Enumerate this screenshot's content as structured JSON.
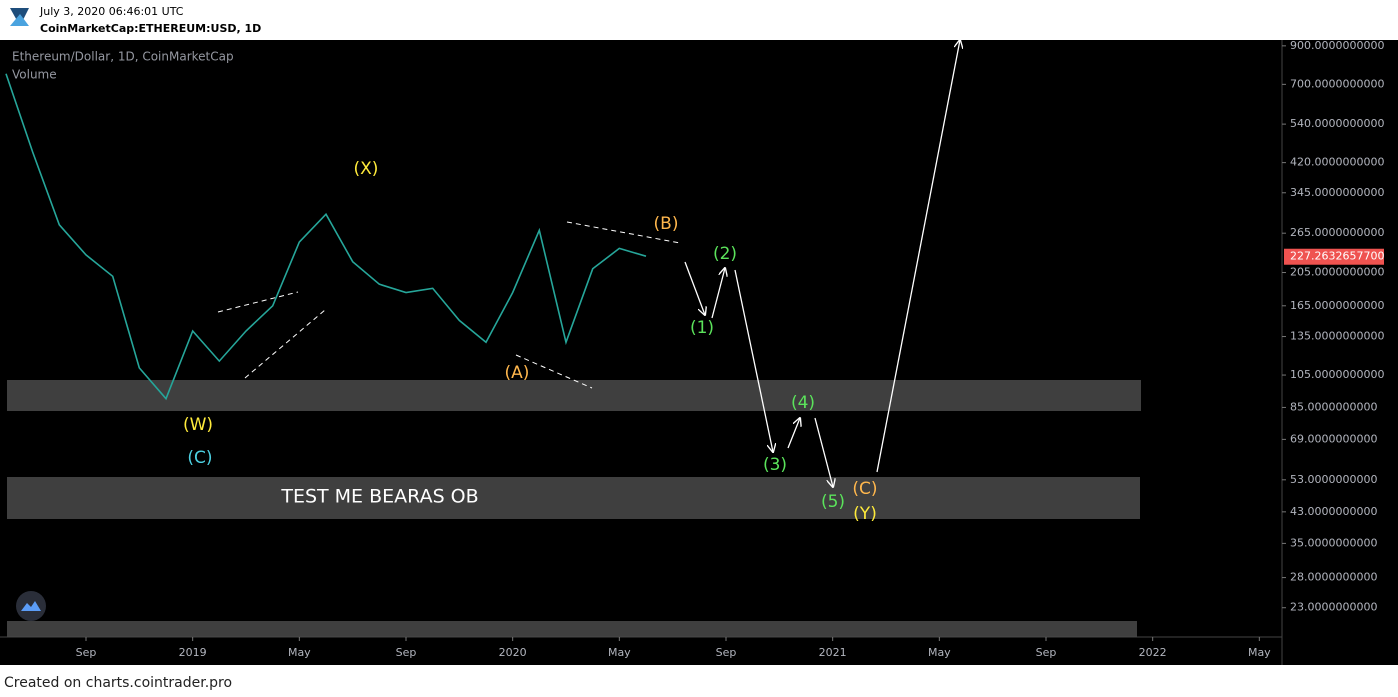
{
  "header": {
    "timestamp": "July 3, 2020 06:46:01 UTC",
    "symbol": "CoinMarketCap:ETHEREUM:USD, 1D"
  },
  "footer": "Created on charts.cointrader.pro",
  "chart_data": {
    "type": "line",
    "legend_title": "Ethereum/Dollar, 1D, CoinMarketCap",
    "volume_label": "Volume",
    "log_scale": true,
    "x": [
      "2018-06",
      "2018-07",
      "2018-08",
      "2018-09",
      "2018-10",
      "2018-11",
      "2018-12",
      "2019-01",
      "2019-02",
      "2019-03",
      "2019-04",
      "2019-05",
      "2019-06",
      "2019-07",
      "2019-08",
      "2019-09",
      "2019-10",
      "2019-11",
      "2019-12",
      "2020-01",
      "2020-02",
      "2020-03",
      "2020-04",
      "2020-05",
      "2020-06"
    ],
    "series": [
      {
        "name": "Ethereum/Dollar",
        "color": "#26a69a",
        "values": [
          750,
          450,
          280,
          230,
          200,
          110,
          90,
          140,
          115,
          140,
          165,
          250,
          300,
          220,
          190,
          180,
          185,
          150,
          130,
          180,
          270,
          130,
          210,
          240,
          228
        ]
      }
    ],
    "xlim": [
      "2018-06",
      "2022-06"
    ],
    "xticks": [
      {
        "value": "2018-09",
        "label": "Sep"
      },
      {
        "value": "2019-01",
        "label": "2019"
      },
      {
        "value": "2019-05",
        "label": "May"
      },
      {
        "value": "2019-09",
        "label": "Sep"
      },
      {
        "value": "2020-01",
        "label": "2020"
      },
      {
        "value": "2020-05",
        "label": "May"
      },
      {
        "value": "2020-09",
        "label": "Sep"
      },
      {
        "value": "2021-01",
        "label": "2021"
      },
      {
        "value": "2021-05",
        "label": "May"
      },
      {
        "value": "2021-09",
        "label": "Sep"
      },
      {
        "value": "2022-01",
        "label": "2022"
      },
      {
        "value": "2022-05",
        "label": "May"
      }
    ],
    "ylim": [
      19,
      935
    ],
    "yticks": [
      {
        "value": 900,
        "label": "900.0000000000"
      },
      {
        "value": 700,
        "label": "700.0000000000"
      },
      {
        "value": 540,
        "label": "540.0000000000"
      },
      {
        "value": 420,
        "label": "420.0000000000"
      },
      {
        "value": 345,
        "label": "345.0000000000"
      },
      {
        "value": 265,
        "label": "265.0000000000"
      },
      {
        "value": 205,
        "label": "205.0000000000"
      },
      {
        "value": 165,
        "label": "165.0000000000"
      },
      {
        "value": 135,
        "label": "135.0000000000"
      },
      {
        "value": 105,
        "label": "105.0000000000"
      },
      {
        "value": 85,
        "label": "85.0000000000"
      },
      {
        "value": 69,
        "label": "69.0000000000"
      },
      {
        "value": 53,
        "label": "53.0000000000"
      },
      {
        "value": 43,
        "label": "43.0000000000"
      },
      {
        "value": 35,
        "label": "35.0000000000"
      },
      {
        "value": 28,
        "label": "28.0000000000"
      },
      {
        "value": 23,
        "label": "23.0000000000"
      }
    ],
    "last_price": {
      "value": 227.26326577,
      "label": "227.2632657700",
      "color": "#ef5350"
    },
    "annotations": [
      {
        "text": "(X)",
        "color": "#ffeb3b"
      },
      {
        "text": "(W)",
        "color": "#ffeb3b"
      },
      {
        "text": "(C)",
        "color": "#4dd0e1"
      },
      {
        "text": "(A)",
        "color": "#ffb74d"
      },
      {
        "text": "(B)",
        "color": "#ffb74d"
      },
      {
        "text": "(1)",
        "color": "#5be35b"
      },
      {
        "text": "(2)",
        "color": "#5be35b"
      },
      {
        "text": "(3)",
        "color": "#5be35b"
      },
      {
        "text": "(4)",
        "color": "#5be35b"
      },
      {
        "text": "(5)",
        "color": "#5be35b"
      },
      {
        "text": "(C)",
        "color": "#ffb74d"
      },
      {
        "text": "(Y)",
        "color": "#ffeb3b"
      },
      {
        "text": "TEST ME BEARAS OB",
        "color": "#ffffff"
      }
    ]
  }
}
